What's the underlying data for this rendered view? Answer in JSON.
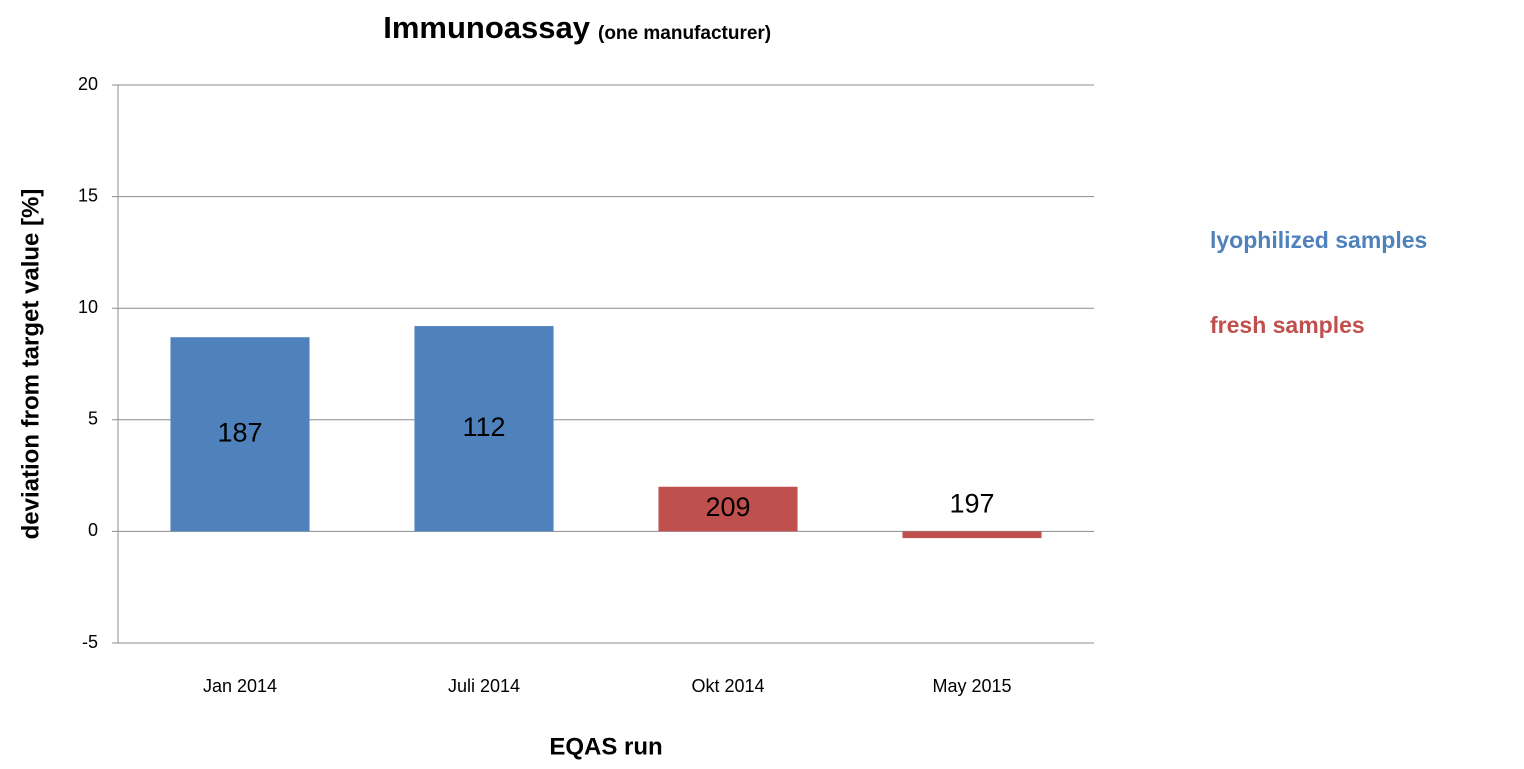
{
  "chart_data": {
    "type": "bar",
    "title": "Immunoassay",
    "subtitle": "(one manufacturer)",
    "x_label": "EQAS run",
    "y_label": "deviation from target value [%]",
    "categories": [
      "Jan 2014",
      "Juli 2014",
      "Okt 2014",
      "May 2015"
    ],
    "series": [
      {
        "name": "lyophilized samples",
        "color": "#4f81bd",
        "values": [
          8.7,
          9.2,
          null,
          null
        ]
      },
      {
        "name": "fresh samples",
        "color": "#c0504d",
        "values": [
          null,
          null,
          2.0,
          -0.3
        ]
      }
    ],
    "annotations": [
      187,
      112,
      209,
      197
    ],
    "ylim": [
      -5,
      20
    ],
    "yticks": [
      -5,
      0,
      5,
      10,
      15,
      20
    ],
    "grid": true
  }
}
